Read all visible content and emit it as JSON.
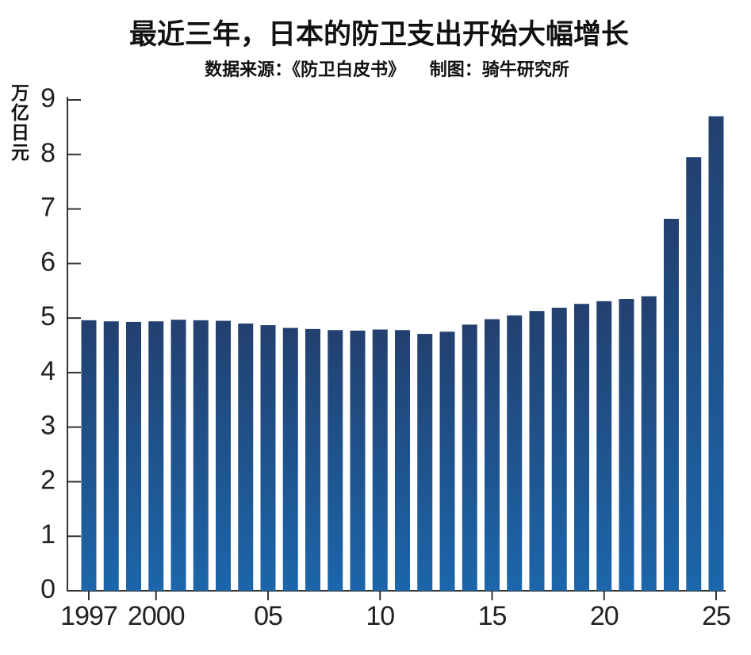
{
  "chart_data": {
    "type": "bar",
    "title": "最近三年，日本的防卫支出开始大幅增长",
    "subtitle": "数据来源：《防卫白皮书》    制图：骑牛研究所",
    "y_label": "万亿日元",
    "categories": [
      "1997",
      null,
      null,
      "2000",
      null,
      null,
      null,
      null,
      "05",
      null,
      null,
      null,
      null,
      "10",
      null,
      null,
      null,
      null,
      "15",
      null,
      null,
      null,
      null,
      "20",
      null,
      null,
      null,
      null,
      "25"
    ],
    "values": [
      4.96,
      4.94,
      4.93,
      4.94,
      4.97,
      4.96,
      4.95,
      4.9,
      4.87,
      4.82,
      4.8,
      4.78,
      4.77,
      4.79,
      4.78,
      4.71,
      4.75,
      4.88,
      4.98,
      5.05,
      5.13,
      5.19,
      5.26,
      5.31,
      5.35,
      5.4,
      6.82,
      7.95,
      8.7
    ],
    "color": "#1c66ab",
    "ylim": [
      0,
      9
    ],
    "yticks": [
      0,
      1,
      2,
      3,
      4,
      5,
      6,
      7,
      8,
      9
    ],
    "grid": false
  }
}
